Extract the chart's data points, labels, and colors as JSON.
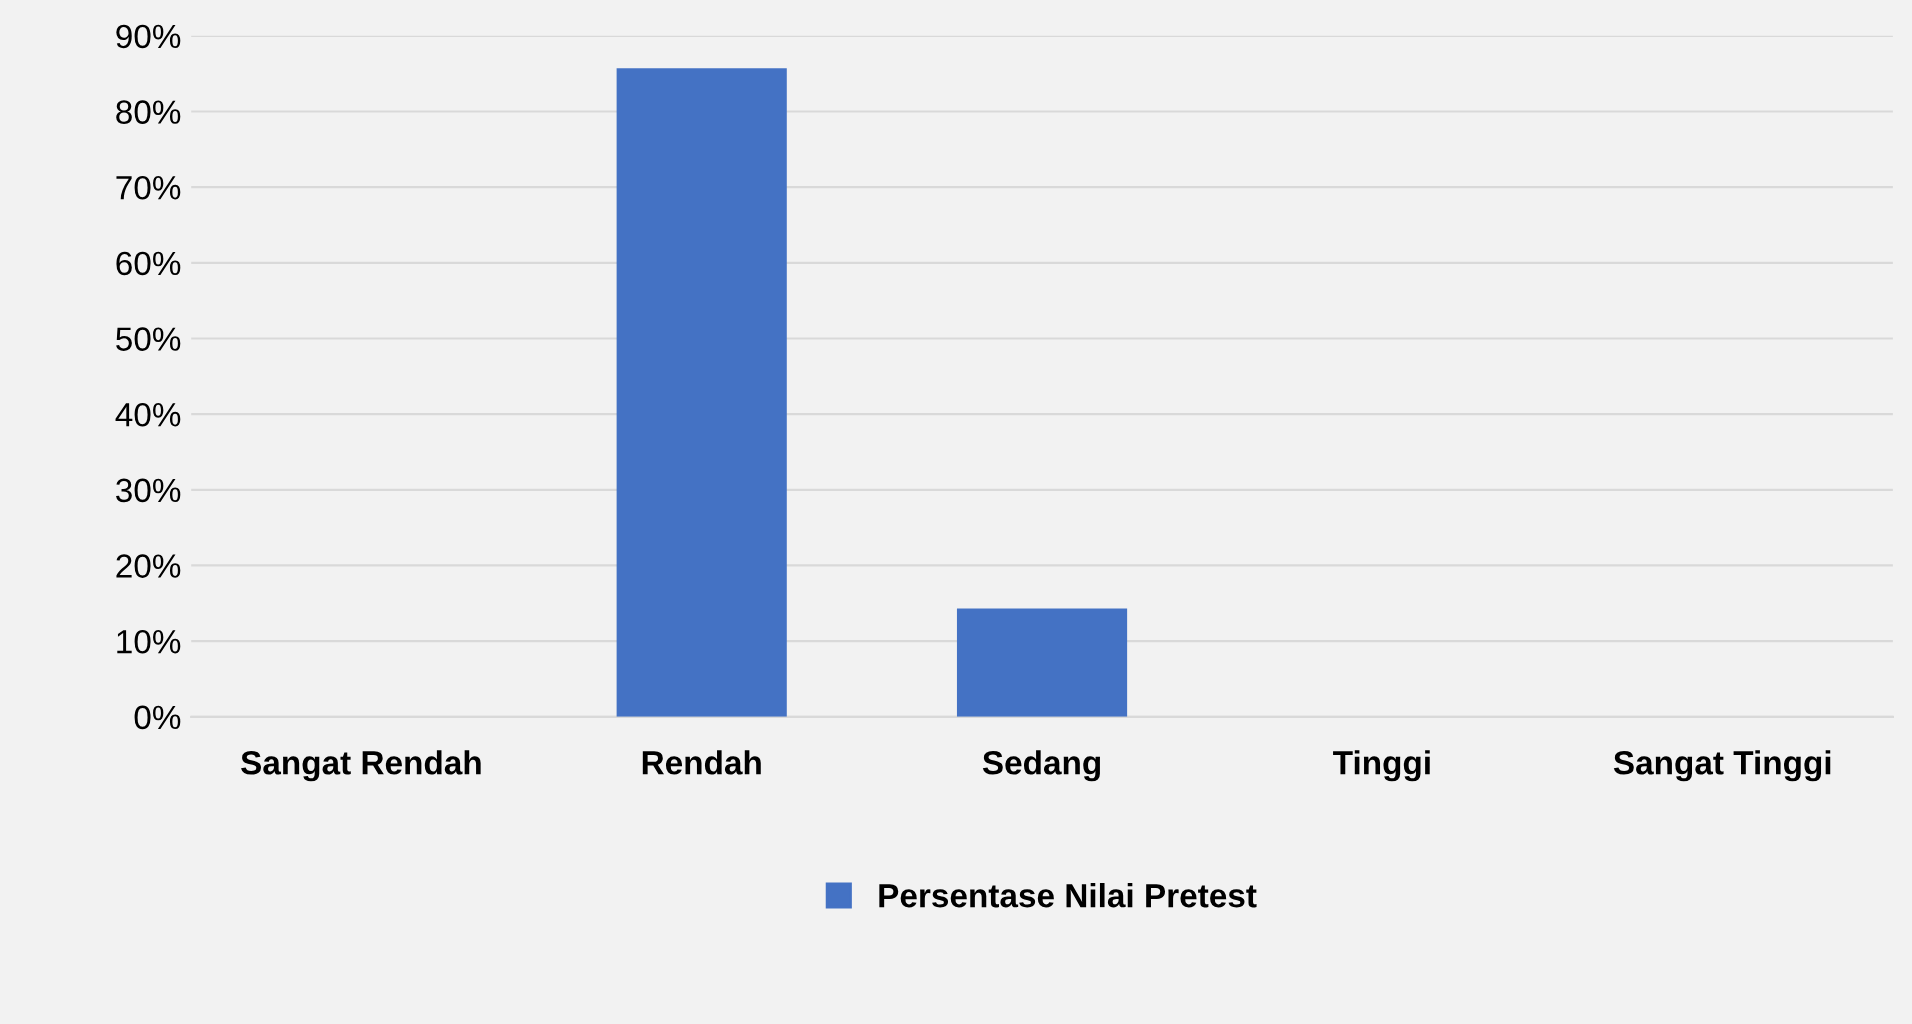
{
  "chart_data": {
    "type": "bar",
    "categories": [
      "Sangat Rendah",
      "Rendah",
      "Sedang",
      "Tinggi",
      "Sangat Tinggi"
    ],
    "series": [
      {
        "name": "Persentase Nilai Pretest",
        "color": "#4472c4",
        "values": [
          0,
          85.7,
          14.3,
          0,
          0
        ]
      }
    ],
    "ylim": [
      0,
      90
    ],
    "yticks": [
      {
        "value": 0,
        "label": "0%"
      },
      {
        "value": 10,
        "label": "10%"
      },
      {
        "value": 20,
        "label": "20%"
      },
      {
        "value": 30,
        "label": "30%"
      },
      {
        "value": 40,
        "label": "40%"
      },
      {
        "value": 50,
        "label": "50%"
      },
      {
        "value": 60,
        "label": "60%"
      },
      {
        "value": 70,
        "label": "70%"
      },
      {
        "value": 80,
        "label": "80%"
      },
      {
        "value": 90,
        "label": "90%"
      }
    ],
    "grid": "y",
    "legend": "bottom"
  }
}
